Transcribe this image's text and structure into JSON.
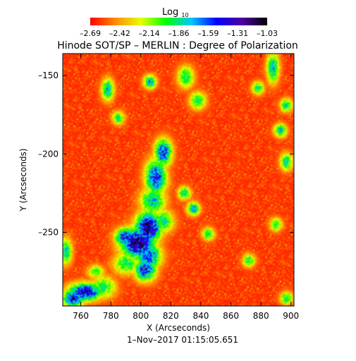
{
  "chart_data": {
    "type": "heatmap",
    "title": "Hinode SOT/SP – MERLIN : Degree of Polarization",
    "xlabel": "X (Arcseconds)",
    "ylabel": "Y (Arcseconds)",
    "footer": "1–Nov–2017 01:15:05.651",
    "xlim": [
      748,
      902
    ],
    "ylim": [
      -297,
      -136
    ],
    "xticks": [
      760,
      780,
      800,
      820,
      840,
      860,
      880,
      900
    ],
    "yticks": [
      -150,
      -200,
      -250
    ],
    "colorbar": {
      "label_main": "Log",
      "label_sub": "10",
      "range": [
        -2.69,
        -1.03
      ],
      "ticks": [
        "–2.69",
        "–2.42",
        "–2.14",
        "–1.86",
        "–1.59",
        "–1.31",
        "–1.03"
      ],
      "colors": [
        "#ff0000",
        "#ff8c00",
        "#e8ff00",
        "#00ff00",
        "#00c8ff",
        "#0000ff",
        "#5000a0",
        "#000000"
      ]
    },
    "map": {
      "background_level": -2.62,
      "features": [
        {
          "x": 815,
          "y": -199,
          "sx": 4,
          "sy": 6,
          "level": 0.75
        },
        {
          "x": 810,
          "y": -215,
          "sx": 5,
          "sy": 8,
          "level": 0.72
        },
        {
          "x": 808,
          "y": -230,
          "sx": 6,
          "sy": 6,
          "level": 0.55
        },
        {
          "x": 805,
          "y": -247,
          "sx": 6,
          "sy": 7,
          "level": 0.92
        },
        {
          "x": 798,
          "y": -257,
          "sx": 8,
          "sy": 7,
          "level": 0.9
        },
        {
          "x": 790,
          "y": -253,
          "sx": 5,
          "sy": 4,
          "level": 0.75
        },
        {
          "x": 805,
          "y": -265,
          "sx": 6,
          "sy": 6,
          "level": 0.7
        },
        {
          "x": 803,
          "y": -274,
          "sx": 5,
          "sy": 5,
          "level": 0.75
        },
        {
          "x": 790,
          "y": -270,
          "sx": 6,
          "sy": 5,
          "level": 0.45
        },
        {
          "x": 815,
          "y": -243,
          "sx": 5,
          "sy": 5,
          "level": 0.5
        },
        {
          "x": 763,
          "y": -288,
          "sx": 8,
          "sy": 4,
          "level": 0.82
        },
        {
          "x": 755,
          "y": -292,
          "sx": 5,
          "sy": 4,
          "level": 0.8
        },
        {
          "x": 775,
          "y": -285,
          "sx": 6,
          "sy": 5,
          "level": 0.45
        },
        {
          "x": 778,
          "y": -159,
          "sx": 3,
          "sy": 5,
          "level": 0.55
        },
        {
          "x": 806,
          "y": -154,
          "sx": 3,
          "sy": 3,
          "level": 0.6
        },
        {
          "x": 785,
          "y": -177,
          "sx": 3,
          "sy": 3,
          "level": 0.45
        },
        {
          "x": 830,
          "y": -151,
          "sx": 4,
          "sy": 5,
          "level": 0.45
        },
        {
          "x": 838,
          "y": -166,
          "sx": 4,
          "sy": 4,
          "level": 0.45
        },
        {
          "x": 835,
          "y": -235,
          "sx": 3,
          "sy": 3,
          "level": 0.6
        },
        {
          "x": 829,
          "y": -225,
          "sx": 3,
          "sy": 3,
          "level": 0.5
        },
        {
          "x": 845,
          "y": -251,
          "sx": 3,
          "sy": 3,
          "level": 0.45
        },
        {
          "x": 888,
          "y": -145,
          "sx": 3,
          "sy": 7,
          "level": 0.55
        },
        {
          "x": 878,
          "y": -158,
          "sx": 3,
          "sy": 3,
          "level": 0.45
        },
        {
          "x": 897,
          "y": -169,
          "sx": 3,
          "sy": 3,
          "level": 0.5
        },
        {
          "x": 893,
          "y": -185,
          "sx": 3,
          "sy": 3,
          "level": 0.55
        },
        {
          "x": 897,
          "y": -205,
          "sx": 3,
          "sy": 4,
          "level": 0.5
        },
        {
          "x": 890,
          "y": -245,
          "sx": 3,
          "sy": 3,
          "level": 0.45
        },
        {
          "x": 872,
          "y": -268,
          "sx": 3,
          "sy": 3,
          "level": 0.45
        },
        {
          "x": 897,
          "y": -292,
          "sx": 3,
          "sy": 3,
          "level": 0.45
        },
        {
          "x": 750,
          "y": -262,
          "sx": 3,
          "sy": 6,
          "level": 0.5
        },
        {
          "x": 770,
          "y": -275,
          "sx": 4,
          "sy": 3,
          "level": 0.4
        }
      ]
    }
  }
}
